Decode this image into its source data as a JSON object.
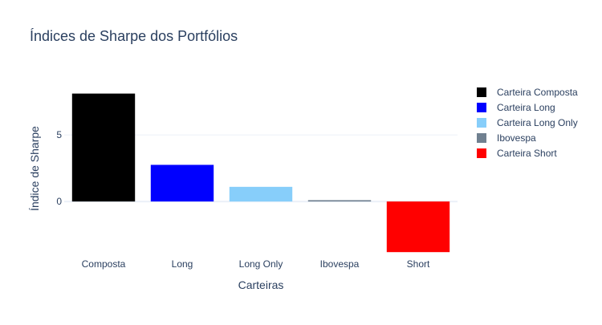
{
  "chart_data": {
    "type": "bar",
    "title": "Índices de Sharpe dos Portfólios",
    "xlabel": "Carteiras",
    "ylabel": "Índice de Sharpe",
    "categories": [
      "Composta",
      "Long",
      "Long Only",
      "Ibovespa",
      "Short"
    ],
    "values": [
      8.1,
      2.75,
      1.1,
      0.1,
      -3.8
    ],
    "ylim": [
      -4.15,
      9.1
    ],
    "yticks": [
      0,
      5
    ],
    "grid": true,
    "legend_position": "top-right",
    "series": [
      {
        "name": "Carteira Composta",
        "category": "Composta",
        "value": 8.1,
        "color": "#000000"
      },
      {
        "name": "Carteira Long",
        "category": "Long",
        "value": 2.75,
        "color": "#0000ff"
      },
      {
        "name": "Carteira Long Only",
        "category": "Long Only",
        "value": 1.1,
        "color": "#87cefa"
      },
      {
        "name": "Ibovespa",
        "category": "Ibovespa",
        "value": 0.1,
        "color": "#708090"
      },
      {
        "name": "Carteira Short",
        "category": "Short",
        "value": -3.8,
        "color": "#ff0000"
      }
    ],
    "colors": {
      "text": "#2a3f5f",
      "grid": "#ebf0f8",
      "zeroline": "#ebf0f8"
    }
  }
}
